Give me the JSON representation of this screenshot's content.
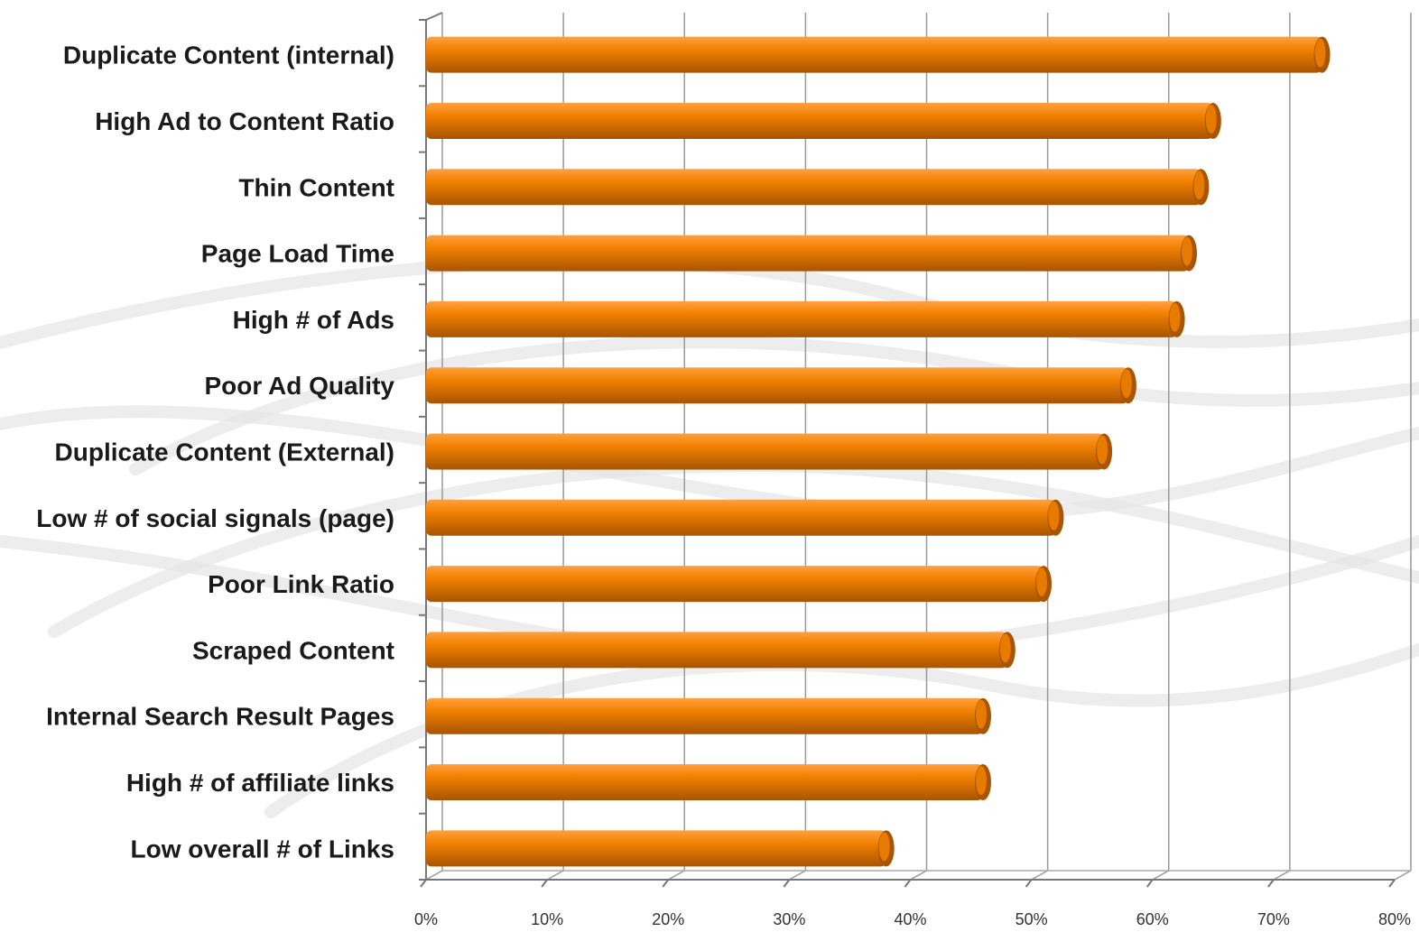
{
  "chart_data": {
    "type": "bar",
    "orientation": "horizontal",
    "style": "3d-cylinder",
    "categories": [
      "Duplicate Content (internal)",
      "High Ad to Content Ratio",
      "Thin Content",
      "Page Load Time",
      "High # of Ads",
      "Poor Ad Quality",
      "Duplicate Content (External)",
      "Low # of social signals (page)",
      "Poor Link Ratio",
      "Scraped Content",
      "Internal Search Result Pages",
      "High # of affiliate links",
      "Low overall # of Links"
    ],
    "values": [
      74,
      65,
      64,
      63,
      62,
      58,
      56,
      52,
      51,
      48,
      46,
      46,
      38
    ],
    "x_ticks": [
      "0%",
      "10%",
      "20%",
      "30%",
      "40%",
      "50%",
      "60%",
      "70%",
      "80%"
    ],
    "xlim": [
      0,
      80
    ],
    "title": "",
    "xlabel": "",
    "ylabel": "",
    "grid": true,
    "bar_color": "#F28100",
    "bar_highlight_color": "#FFA040",
    "bar_shadow_color": "#A85400",
    "gridline_color": "#9a9a9a"
  }
}
